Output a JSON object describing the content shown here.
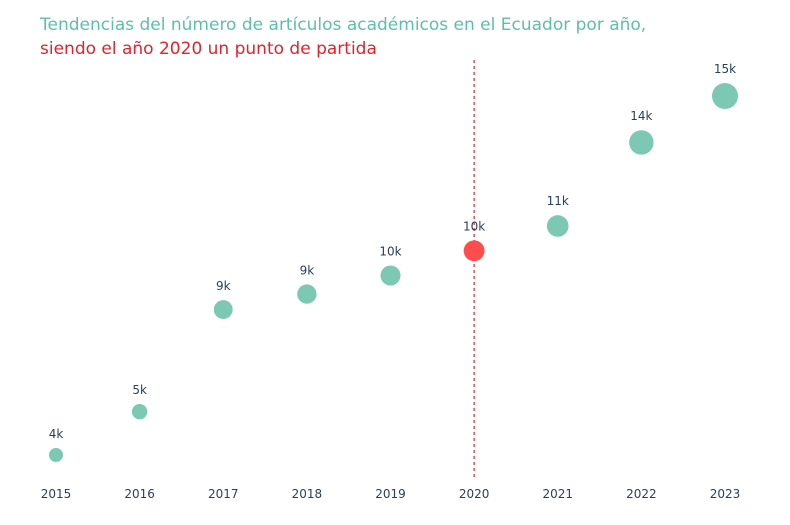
{
  "title": {
    "line1": "Tendencias del número de artículos académicos en el Ecuador por año,",
    "line2": "siendo el año 2020 un punto de partida"
  },
  "colors": {
    "marker": "#7cc8b3",
    "highlight": "#ff4d4d",
    "reference_line": "#e8202a",
    "title_line1": "#5cc0a6",
    "title_line2": "#e8202a"
  },
  "chart_data": {
    "type": "scatter",
    "title": "Tendencias del número de artículos académicos en el Ecuador por año, siendo el año 2020 un punto de partida",
    "xlabel": "",
    "ylabel": "",
    "x": [
      "2015",
      "2016",
      "2017",
      "2018",
      "2019",
      "2020",
      "2021",
      "2022",
      "2023"
    ],
    "values": [
      3900,
      5300,
      8600,
      9100,
      9700,
      10500,
      11300,
      14000,
      15500
    ],
    "labels": [
      "4k",
      "5k",
      "9k",
      "9k",
      "10k",
      "10k",
      "11k",
      "14k",
      "15k"
    ],
    "highlight": "2020",
    "reference_line_x": "2020",
    "ylim": [
      3500,
      16000
    ],
    "grid": false,
    "legend": "none"
  }
}
